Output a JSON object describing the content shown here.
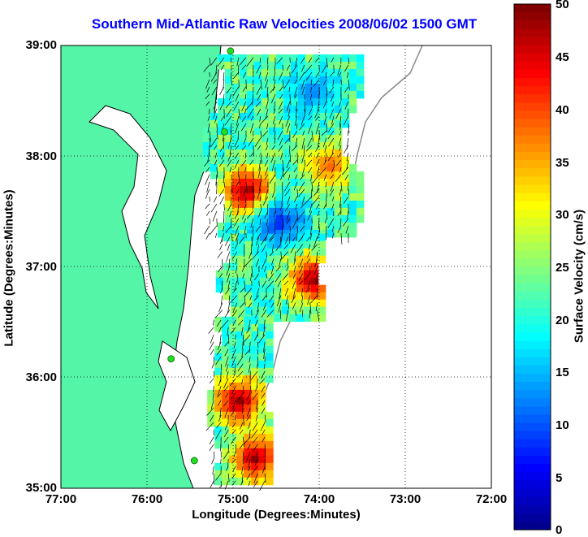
{
  "title": "Southern Mid-Atlantic Raw Velocities 2008/06/02 1500 GMT",
  "axes": {
    "xlabel": "Longitude (Degrees:Minutes)",
    "ylabel": "Latitude (Degrees:Minutes)",
    "xticks": [
      "77:00",
      "76:00",
      "75:00",
      "74:00",
      "73:00",
      "72:00"
    ],
    "yticks": [
      "39:00",
      "38:00",
      "37:00",
      "36:00",
      "35:00"
    ]
  },
  "colorbar": {
    "label": "Surface Velocity (cm/s)",
    "ticks": [
      "50",
      "45",
      "40",
      "35",
      "30",
      "25",
      "20",
      "15",
      "10",
      "5",
      "0"
    ],
    "range": [
      0,
      50
    ],
    "colormap": "jet"
  },
  "colors": {
    "land": "#55f5a8",
    "title": "#0000ff",
    "station": "#22dd22"
  },
  "map": {
    "extent_lon": [
      -77,
      -72
    ],
    "extent_lat": [
      35,
      39
    ],
    "stations": [
      {
        "lon": -75.03,
        "lat": 38.95
      },
      {
        "lon": -75.1,
        "lat": 38.22
      },
      {
        "lon": -75.72,
        "lat": 36.17
      },
      {
        "lon": -75.45,
        "lat": 35.25
      }
    ],
    "velocity_regions": [
      {
        "name": "northern-field",
        "lon": [
          -75.35,
          -73.55
        ],
        "lat": [
          37.3,
          38.92
        ]
      },
      {
        "name": "central-field",
        "lon": [
          -75.2,
          -73.95
        ],
        "lat": [
          36.55,
          37.3
        ]
      },
      {
        "name": "southern-field",
        "lon": [
          -75.3,
          -74.55
        ],
        "lat": [
          35.05,
          36.55
        ]
      }
    ]
  }
}
